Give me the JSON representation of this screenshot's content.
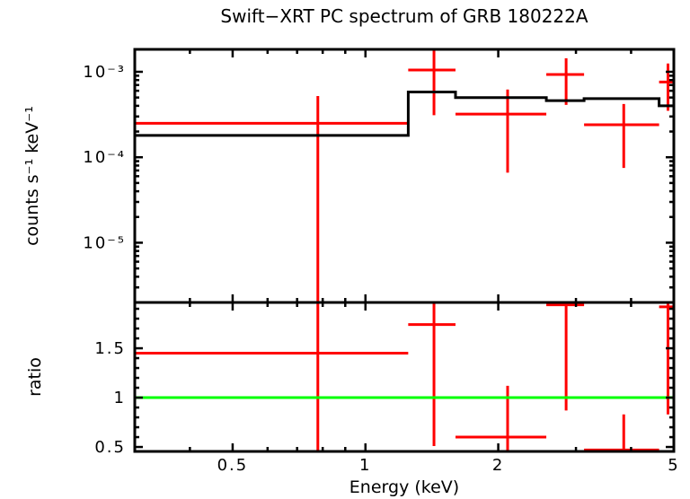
{
  "title": "Swift−XRT PC spectrum of GRB 180222A",
  "colors": {
    "data": "#ff0000",
    "model": "#000000",
    "reference": "#00ff00",
    "axis": "#000000",
    "background": "#ffffff"
  },
  "chart_data": [
    {
      "type": "scatter",
      "name": "spectrum-panel",
      "ylabel": "counts s⁻¹ keV⁻¹",
      "xscale": "log",
      "yscale": "log",
      "xlim": [
        0.3,
        5.0
      ],
      "ylim": [
        2e-06,
        0.00183
      ],
      "grid": false,
      "xticks": {
        "major": [
          0.5,
          1,
          2,
          5
        ],
        "labels": null,
        "minor": [
          0.4,
          0.6,
          0.7,
          0.8,
          0.9,
          3,
          4
        ]
      },
      "yticks": {
        "major": [
          0.001,
          0.0001,
          1e-05
        ],
        "labels": [
          "10⁻³",
          "10⁻⁴",
          "10⁻⁵"
        ]
      },
      "series": [
        {
          "name": "spectrum-data",
          "style": "errorbar",
          "color": "#ff0000",
          "points": [
            {
              "x": 0.78,
              "xlo": 0.3,
              "xhi": 1.25,
              "y": 0.00025,
              "ylo": 1e-06,
              "yhi": 0.00052
            },
            {
              "x": 1.43,
              "xlo": 1.25,
              "xhi": 1.6,
              "y": 0.00105,
              "ylo": 0.00031,
              "yhi": 0.004
            },
            {
              "x": 2.1,
              "xlo": 1.6,
              "xhi": 2.57,
              "y": 0.00032,
              "ylo": 6.6e-05,
              "yhi": 0.00062
            },
            {
              "x": 2.85,
              "xlo": 2.57,
              "xhi": 3.13,
              "y": 0.00093,
              "ylo": 0.00041,
              "yhi": 0.00144
            },
            {
              "x": 3.85,
              "xlo": 3.13,
              "xhi": 4.63,
              "y": 0.00024,
              "ylo": 7.5e-05,
              "yhi": 0.00042
            },
            {
              "x": 4.85,
              "xlo": 4.63,
              "xhi": 5.0,
              "y": 0.00076,
              "ylo": 0.00035,
              "yhi": 0.00125
            }
          ]
        },
        {
          "name": "model",
          "style": "steps",
          "color": "#000000",
          "steps": [
            {
              "xlo": 0.3,
              "xhi": 1.25,
              "y": 0.00018
            },
            {
              "xlo": 1.25,
              "xhi": 1.6,
              "y": 0.00058
            },
            {
              "xlo": 1.6,
              "xhi": 2.57,
              "y": 0.0005
            },
            {
              "xlo": 2.57,
              "xhi": 3.13,
              "y": 0.00046
            },
            {
              "xlo": 3.13,
              "xhi": 4.63,
              "y": 0.000485
            },
            {
              "xlo": 4.63,
              "xhi": 5.0,
              "y": 0.0004
            }
          ]
        }
      ]
    },
    {
      "type": "scatter",
      "name": "ratio-panel",
      "xlabel": "Energy (keV)",
      "ylabel": "ratio",
      "xscale": "log",
      "yscale": "linear",
      "xlim": [
        0.3,
        5.0
      ],
      "ylim": [
        0.455,
        1.964
      ],
      "grid": false,
      "xticks": {
        "major": [
          0.5,
          1,
          2,
          5
        ],
        "labels": [
          "0.5",
          "1",
          "2",
          "5"
        ],
        "minor": [
          0.4,
          0.6,
          0.7,
          0.8,
          0.9,
          3,
          4
        ]
      },
      "yticks": {
        "major": [
          0.5,
          1.0,
          1.5
        ],
        "labels": [
          "0.5",
          "1",
          "1.5"
        ],
        "minor_step": 0.1
      },
      "reference_line": {
        "y": 1.0,
        "color": "#00ff00"
      },
      "series": [
        {
          "name": "ratio-data",
          "style": "errorbar",
          "color": "#ff0000",
          "points": [
            {
              "x": 0.78,
              "xlo": 0.3,
              "xhi": 1.25,
              "y": 1.45,
              "ylo": -0.5,
              "yhi": 3.5
            },
            {
              "x": 1.43,
              "xlo": 1.25,
              "xhi": 1.6,
              "y": 1.74,
              "ylo": 0.51,
              "yhi": 3.5
            },
            {
              "x": 2.1,
              "xlo": 1.6,
              "xhi": 2.57,
              "y": 0.6,
              "ylo": -0.5,
              "yhi": 1.12
            },
            {
              "x": 2.85,
              "xlo": 2.57,
              "xhi": 3.13,
              "y": 1.94,
              "ylo": 0.87,
              "yhi": 3.5
            },
            {
              "x": 3.85,
              "xlo": 3.13,
              "xhi": 4.63,
              "y": 0.47,
              "ylo": -0.5,
              "yhi": 0.83
            },
            {
              "x": 4.85,
              "xlo": 4.63,
              "xhi": 5.0,
              "y": 1.92,
              "ylo": 0.83,
              "yhi": 3.5
            }
          ]
        }
      ]
    }
  ]
}
